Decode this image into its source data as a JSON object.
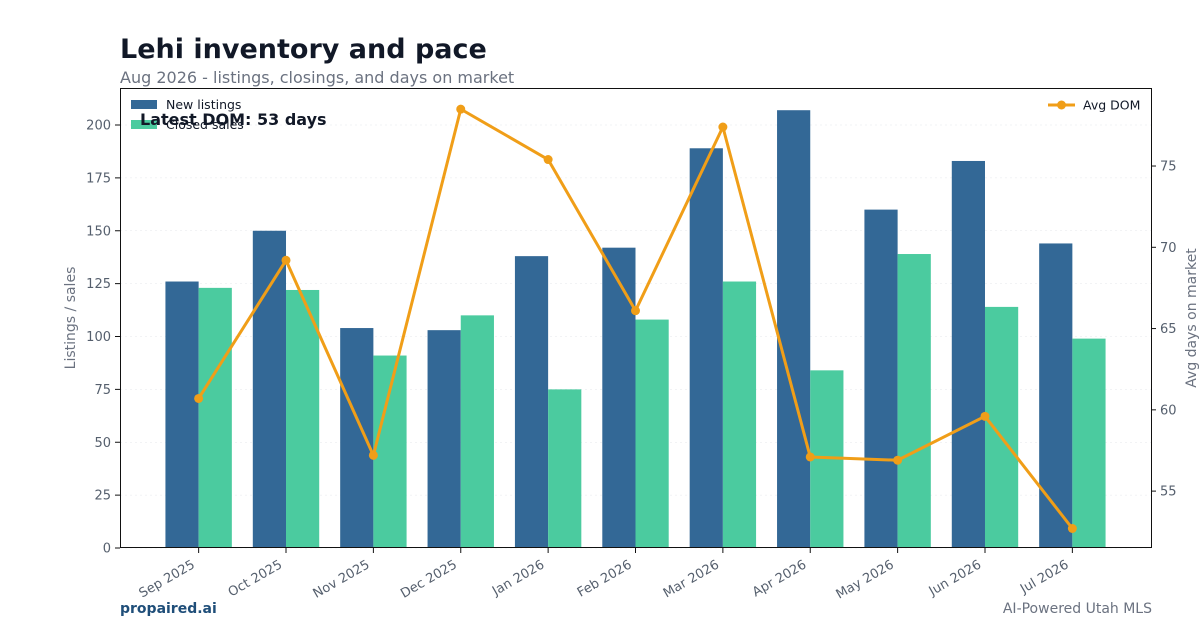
{
  "header": {
    "title": "Lehi inventory and pace",
    "subtitle": "Aug 2026 - listings, closings, and days on market"
  },
  "footer": {
    "brand": "propaired.ai",
    "source": "AI-Powered Utah MLS"
  },
  "colors": {
    "new_listings": "#336896",
    "closed_sales": "#4bcb9f",
    "avg_dom": "#f09e18"
  },
  "chart_data": {
    "type": "bar",
    "categories": [
      "Sep 2025",
      "Oct 2025",
      "Nov 2025",
      "Dec 2025",
      "Jan 2026",
      "Feb 2026",
      "Mar 2026",
      "Apr 2026",
      "May 2026",
      "Jun 2026",
      "Jul 2026"
    ],
    "series": [
      {
        "name": "New listings",
        "type": "bar",
        "axis": "left",
        "values": [
          126,
          150,
          104,
          103,
          138,
          142,
          189,
          207,
          160,
          183,
          144
        ]
      },
      {
        "name": "Closed sales",
        "type": "bar",
        "axis": "left",
        "values": [
          123,
          122,
          91,
          110,
          75,
          108,
          126,
          84,
          139,
          114,
          99
        ]
      },
      {
        "name": "Avg DOM",
        "type": "line",
        "axis": "right",
        "values": [
          60.7,
          69.2,
          57.2,
          78.5,
          75.4,
          66.1,
          77.4,
          57.1,
          56.9,
          59.6,
          52.7
        ]
      }
    ],
    "ylabel": "Listings / sales",
    "ylabel_right": "Avg days on market",
    "ylim": [
      0,
      217.5
    ],
    "ylim_right": [
      51.5,
      79.8
    ],
    "yticks": [
      0,
      25,
      50,
      75,
      100,
      125,
      150,
      175,
      200
    ],
    "yticks_right": [
      55,
      60,
      65,
      70,
      75
    ],
    "annotation": "Latest DOM: 53 days",
    "legend_left": "top-left",
    "legend_right": "top-right",
    "grid": true
  }
}
